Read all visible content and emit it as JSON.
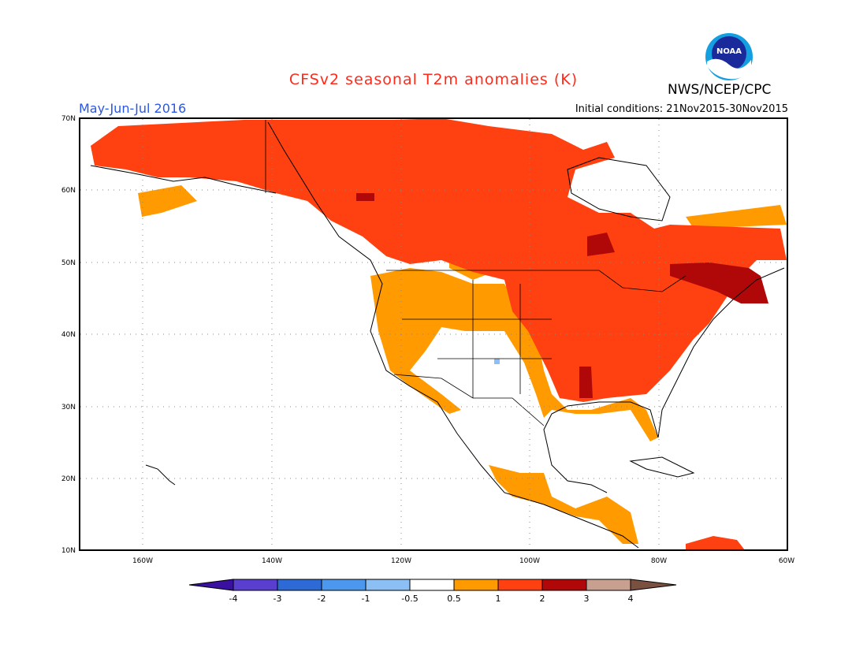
{
  "header": {
    "title": "CFSv2 seasonal T2m anomalies (K)",
    "season": "May-Jun-Jul 2016",
    "initial_conditions": "Initial conditions: 21Nov2015-30Nov2015",
    "org": "NWS/NCEP/CPC",
    "logo_text": "NOAA"
  },
  "map": {
    "lat_labels": [
      "70N",
      "60N",
      "50N",
      "40N",
      "30N",
      "20N",
      "10N"
    ],
    "lon_labels": [
      "160W",
      "140W",
      "120W",
      "100W",
      "80W",
      "60W"
    ]
  },
  "legend": {
    "labels": [
      "-4",
      "-3",
      "-2",
      "-1",
      "-0.5",
      "0.5",
      "1",
      "2",
      "3",
      "4"
    ],
    "colors": [
      "#3a10a0",
      "#5a3ed0",
      "#2d6ad6",
      "#4b98ee",
      "#8cc0f5",
      "#ffffff",
      "#ff9a00",
      "#ff4010",
      "#b00808",
      "#c8a090",
      "#7a5040"
    ]
  },
  "colors": {
    "title": "#ff2a1a",
    "season": "#2a56e8",
    "anomaly_05_1": "#ff9a00",
    "anomaly_1_2": "#ff4010",
    "anomaly_2_3": "#b00808"
  }
}
